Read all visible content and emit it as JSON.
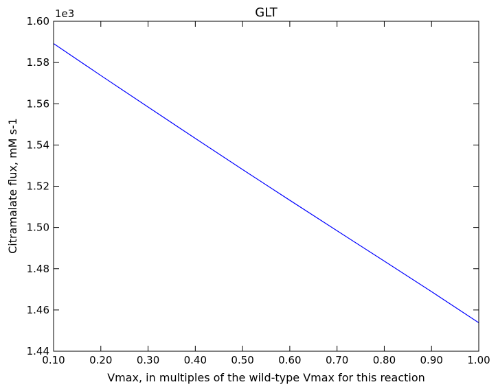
{
  "chart_data": {
    "type": "line",
    "title": "GLT",
    "xlabel": "Vmax, in multiples of the wild-type Vmax for this reaction",
    "ylabel": "Citramalate flux, mM s-1",
    "y_scale_label": "1e3",
    "y_scale_factor": 1000,
    "xlim": [
      0.1,
      1.0
    ],
    "ylim": [
      1440,
      1600
    ],
    "grid": false,
    "legend": "none",
    "x_ticks": [
      0.1,
      0.2,
      0.3,
      0.4,
      0.5,
      0.6,
      0.7,
      0.8,
      0.9,
      1.0
    ],
    "x_tick_labels": [
      "0.10",
      "0.20",
      "0.30",
      "0.40",
      "0.50",
      "0.60",
      "0.70",
      "0.80",
      "0.90",
      "1.00"
    ],
    "y_ticks": [
      1440,
      1460,
      1480,
      1500,
      1520,
      1540,
      1560,
      1580,
      1600
    ],
    "y_tick_labels": [
      "1.44",
      "1.46",
      "1.48",
      "1.50",
      "1.52",
      "1.54",
      "1.56",
      "1.58",
      "1.60"
    ],
    "series": [
      {
        "color": "#0000ff",
        "x": [
          0.1,
          0.2,
          0.3,
          0.4,
          0.5,
          0.6,
          0.7,
          0.8,
          0.9,
          1.0
        ],
        "y": [
          1589.2,
          1573.7,
          1558.4,
          1543.2,
          1528.1,
          1513.2,
          1498.4,
          1483.7,
          1468.9,
          1453.8
        ]
      }
    ]
  }
}
